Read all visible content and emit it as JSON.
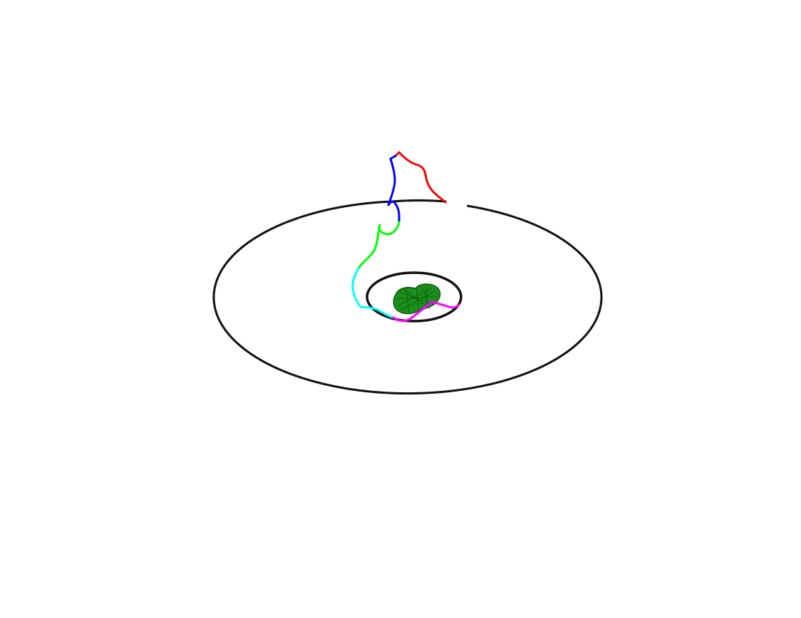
{
  "colors": {
    "background": "#ffffff",
    "outer_orbit": "#111111",
    "inner_orbit": "#111111",
    "asteroid_fill": "#1a8f1a",
    "asteroid_mesh": "#0a4a0a"
  },
  "scene": {
    "asteroid": {
      "icon": "asteroid-icon"
    },
    "outer_orbit": {
      "style": "dotted"
    },
    "inner_orbit": {
      "style": "solid"
    },
    "trajectory": {
      "segments": [
        {
          "name": "segment-1",
          "color": "#ff0000"
        },
        {
          "name": "segment-2",
          "color": "#0000ff"
        },
        {
          "name": "segment-3",
          "color": "#00ff00"
        },
        {
          "name": "segment-4",
          "color": "#00ffff"
        },
        {
          "name": "segment-5",
          "color": "#ff00ff"
        }
      ]
    }
  }
}
